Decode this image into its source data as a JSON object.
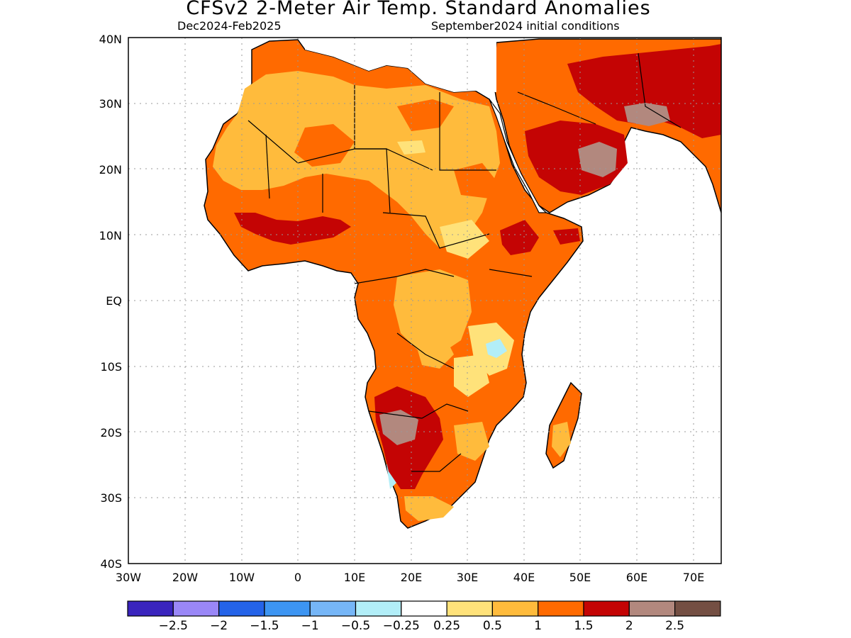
{
  "header": {
    "title": "CFSv2 2-Meter Air Temp. Standard Anomalies",
    "period": "Dec2024-Feb2025",
    "initial_conditions": "September2024 initial conditions"
  },
  "map": {
    "region": "Africa",
    "lon_range": [
      -30,
      75
    ],
    "lat_range": [
      -40,
      40
    ],
    "lat_ticks": [
      "40N",
      "30N",
      "20N",
      "10N",
      "EQ",
      "10S",
      "20S",
      "30S",
      "40S"
    ],
    "lon_ticks": [
      "30W",
      "20W",
      "10W",
      "0",
      "10E",
      "20E",
      "30E",
      "40E",
      "50E",
      "60E",
      "70E"
    ]
  },
  "legend": {
    "colors": [
      "#3a24bd",
      "#9a87f7",
      "#2463e8",
      "#3d95f2",
      "#76b6f7",
      "#b2eef8",
      "#ffffff",
      "#ffe27a",
      "#ffbb3c",
      "#ff6a00",
      "#c40404",
      "#b2887e",
      "#744f43"
    ],
    "labels": [
      "-2.5",
      "-2",
      "-1.5",
      "-1",
      "-0.5",
      "-0.25",
      "0.25",
      "0.5",
      "1",
      "1.5",
      "2",
      "2.5"
    ]
  }
}
